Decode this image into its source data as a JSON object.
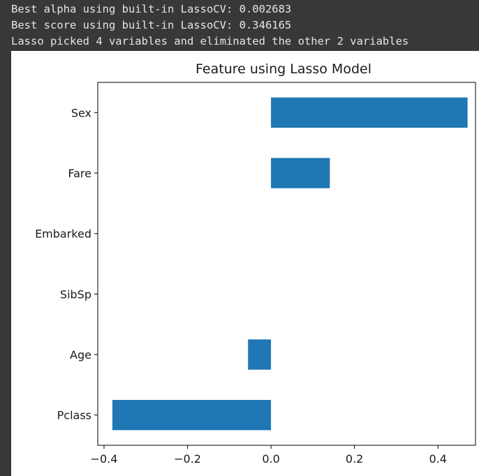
{
  "console": {
    "lines": [
      "Best alpha using built-in LassoCV: 0.002683",
      "Best score using built-in LassoCV: 0.346165",
      "Lasso picked 4 variables and eliminated the other 2 variables"
    ]
  },
  "colors": {
    "background": "#383838",
    "bar": "#1f77b4",
    "figure_bg": "#ffffff"
  },
  "chart_data": {
    "type": "bar",
    "orientation": "horizontal",
    "title": "Feature using Lasso Model",
    "xlabel": "",
    "ylabel": "",
    "categories": [
      "Sex",
      "Fare",
      "Embarked",
      "SibSp",
      "Age",
      "Pclass"
    ],
    "values": [
      0.471,
      0.141,
      0.0,
      0.0,
      -0.055,
      -0.38
    ],
    "xlim": [
      -0.415,
      0.49
    ],
    "xticks": [
      -0.4,
      -0.2,
      0.0,
      0.2,
      0.4
    ],
    "xtick_labels": [
      "−0.4",
      "−0.2",
      "0.0",
      "0.2",
      "0.4"
    ],
    "grid": false,
    "legend": "none"
  }
}
